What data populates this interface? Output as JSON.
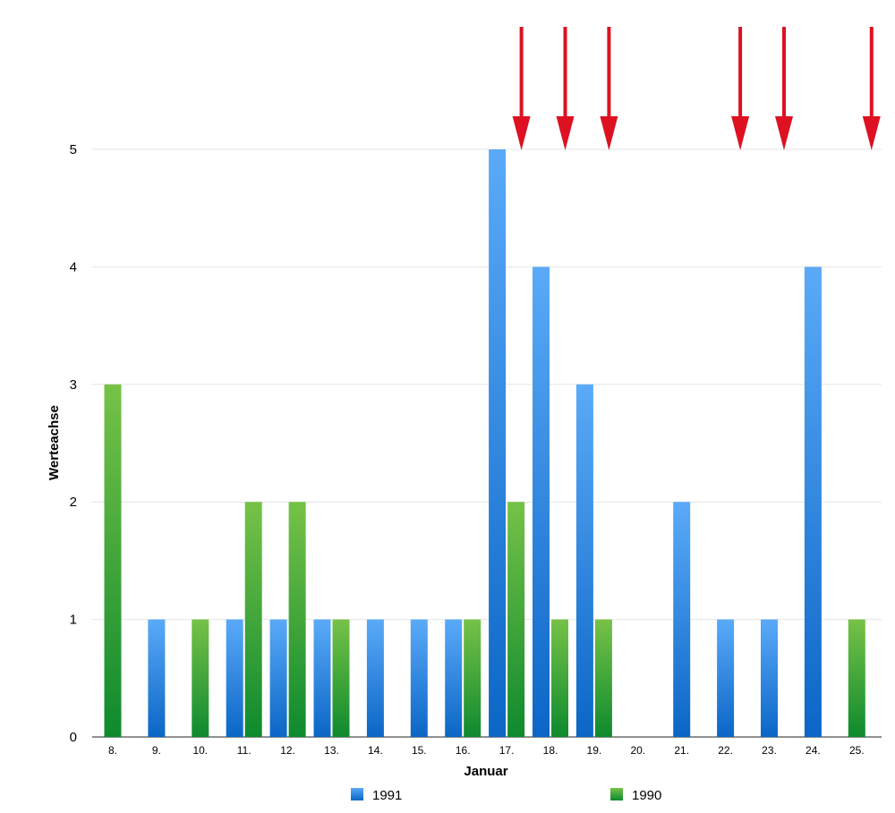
{
  "chart_data": {
    "type": "bar",
    "title": "",
    "xlabel": "Januar",
    "ylabel": "Werteachse",
    "ylim": [
      0,
      5
    ],
    "yticks": [
      0,
      1,
      2,
      3,
      4,
      5
    ],
    "grid": true,
    "legend_position": "bottom",
    "categories": [
      "8.",
      "9.",
      "10.",
      "11.",
      "12.",
      "13.",
      "14.",
      "15.",
      "16.",
      "17.",
      "18.",
      "19.",
      "20.",
      "21.",
      "22.",
      "23.",
      "24.",
      "25."
    ],
    "series": [
      {
        "name": "1991",
        "color": "#2a84dd",
        "values": [
          0,
          1,
          0,
          1,
          1,
          1,
          1,
          1,
          1,
          5,
          4,
          3,
          0,
          2,
          1,
          1,
          4,
          0
        ]
      },
      {
        "name": "1990",
        "color": "#2fa03a",
        "values": [
          3,
          0,
          1,
          2,
          2,
          1,
          0,
          0,
          1,
          2,
          1,
          1,
          0,
          0,
          0,
          0,
          0,
          1
        ]
      }
    ],
    "annotations": {
      "arrow_color": "#dd1122",
      "arrow_categories": [
        "17.",
        "18.",
        "19.",
        "22.",
        "23.",
        "25."
      ]
    }
  }
}
